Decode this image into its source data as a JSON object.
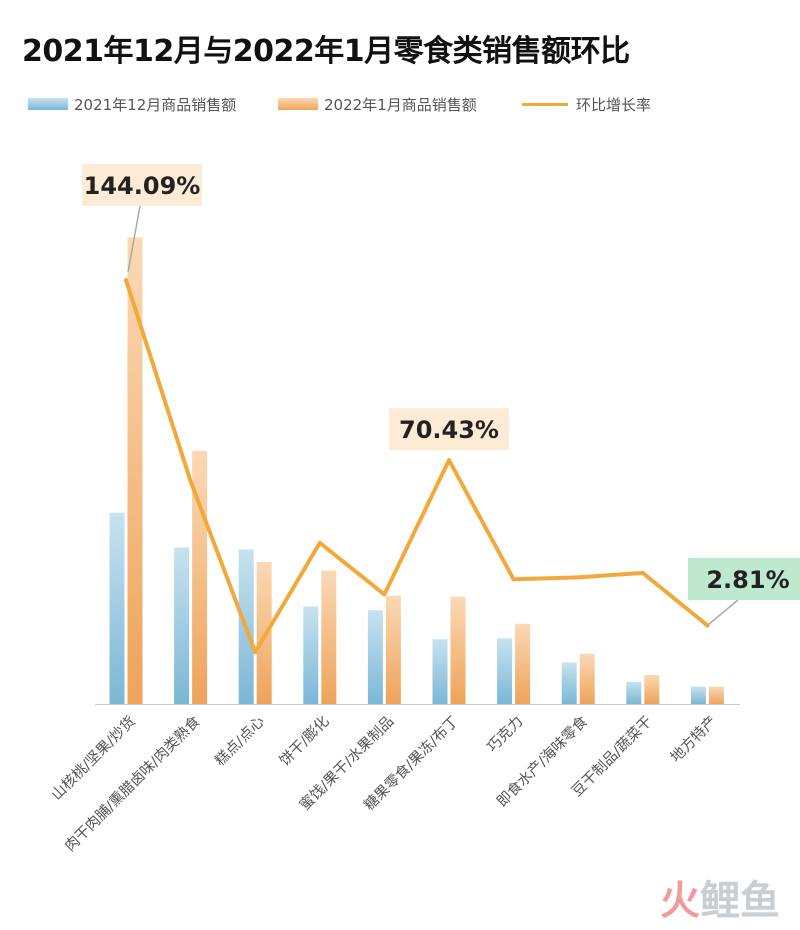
{
  "chart_data": {
    "type": "bar",
    "title": "2021年12月与2022年1月零食类销售额环比",
    "categories": [
      "山核桃/坚果/炒货",
      "肉干肉脯/熏腊卤味/肉类熟食",
      "糕点/点心",
      "饼干/膨化",
      "蜜饯/果干/水果制品",
      "糖果零食/果冻/布丁",
      "巧克力",
      "即食水产/海味零食",
      "豆干制品/蔬菜干",
      "地方特产"
    ],
    "series": [
      {
        "name": "2021年12月商品销售额",
        "type": "bar",
        "values": [
          198,
          162,
          160,
          101,
          97,
          67,
          68,
          43,
          23,
          18
        ]
      },
      {
        "name": "2022年1月商品销售额",
        "type": "bar",
        "values": [
          483,
          262,
          147,
          138,
          112,
          111,
          83,
          52,
          30,
          18
        ]
      },
      {
        "name": "环比增长率",
        "type": "line",
        "unit": "%",
        "values": [
          144.09,
          61.8,
          -8.1,
          36.6,
          15.5,
          70.43,
          21.7,
          22.5,
          24.3,
          2.81
        ]
      }
    ],
    "annotations": [
      {
        "index": 0,
        "text": "144.09%"
      },
      {
        "index": 5,
        "text": "70.43%"
      },
      {
        "index": 9,
        "text": "2.81%"
      }
    ],
    "xlabel": "",
    "ylabel": "",
    "ylim": [
      0,
      500
    ],
    "y2lim": [
      -15,
      165
    ],
    "grid": false,
    "legend_position": "top-left",
    "colors": {
      "bar1_light": "#c7e2f0",
      "bar1_dark": "#7bb7d6",
      "bar2_light": "#fbd9b5",
      "bar2_dark": "#eea35a",
      "line": "#f2a93b",
      "annotation_bg_orange": "#fdebd6",
      "annotation_bg_green": "#bfe9cf",
      "axis": "#cccccc"
    }
  },
  "watermark": {
    "part1": "火",
    "part2": "鲤鱼"
  }
}
